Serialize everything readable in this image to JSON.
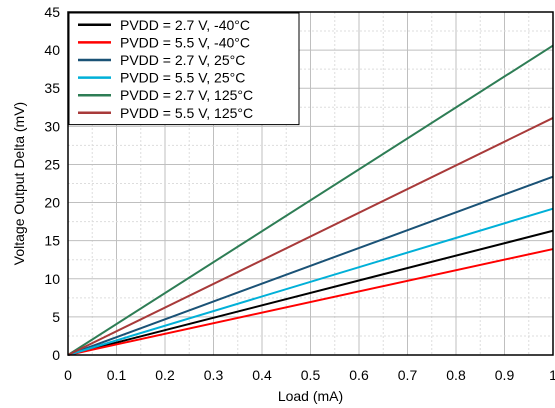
{
  "chart_data": {
    "type": "line",
    "xlabel": "Load (mA)",
    "ylabel": "Voltage Output Delta (mV)",
    "xlim": [
      0,
      1
    ],
    "ylim": [
      0,
      45
    ],
    "xticks": [
      0,
      0.1,
      0.2,
      0.3,
      0.4,
      0.5,
      0.6,
      0.7,
      0.8,
      0.9,
      1
    ],
    "yticks": [
      0,
      5,
      10,
      15,
      20,
      25,
      30,
      35,
      40,
      45
    ],
    "xtick_labels": [
      "0",
      "0.1",
      "0.2",
      "0.3",
      "0.4",
      "0.5",
      "0.6",
      "0.7",
      "0.8",
      "0.9",
      "1"
    ],
    "ytick_labels": [
      "0",
      "5",
      "10",
      "15",
      "20",
      "25",
      "30",
      "35",
      "40",
      "45"
    ],
    "grid": true,
    "legend_position": "top-left",
    "series": [
      {
        "name": "PVDD = 2.7 V, -40°C",
        "color": "#000000",
        "x": [
          0,
          1
        ],
        "y": [
          0,
          16.3
        ]
      },
      {
        "name": "PVDD = 5.5 V, -40°C",
        "color": "#ff0000",
        "x": [
          0,
          1
        ],
        "y": [
          0,
          13.9
        ]
      },
      {
        "name": "PVDD = 2.7 V, 25°C",
        "color": "#1a5276",
        "x": [
          0,
          1
        ],
        "y": [
          0,
          23.4
        ]
      },
      {
        "name": "PVDD = 5.5 V, 25°C",
        "color": "#00b0d8",
        "x": [
          0,
          1
        ],
        "y": [
          0,
          19.2
        ]
      },
      {
        "name": "PVDD = 2.7 V, 125°C",
        "color": "#2e7d55",
        "x": [
          0,
          1
        ],
        "y": [
          0,
          40.6
        ]
      },
      {
        "name": "PVDD = 5.5 V, 125°C",
        "color": "#a83a3a",
        "x": [
          0,
          1
        ],
        "y": [
          0,
          31.1
        ]
      }
    ]
  }
}
